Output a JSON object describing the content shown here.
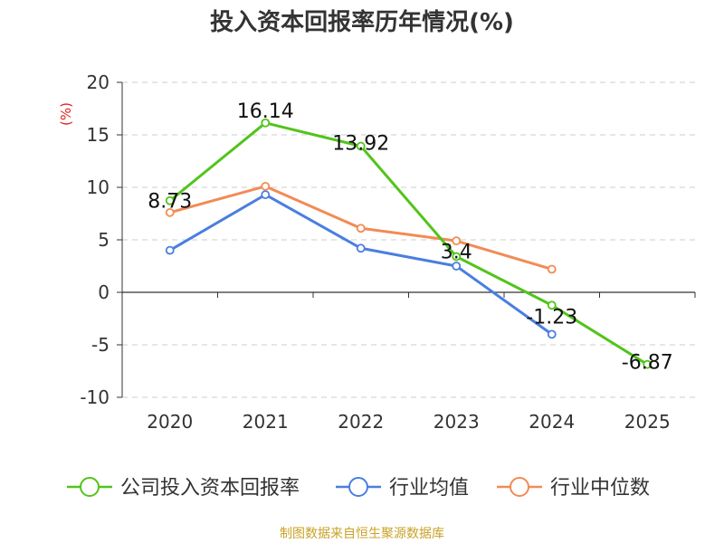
{
  "chart_data": {
    "type": "line",
    "title": "投入资本回报率历年情况(%)",
    "ylabel": "(%)",
    "xlabel": "",
    "categories": [
      "2020",
      "2021",
      "2022",
      "2023",
      "2024",
      "2025"
    ],
    "ylim": [
      -10,
      20
    ],
    "yticks": [
      20,
      15,
      10,
      5,
      0,
      -5,
      -10
    ],
    "grid": true,
    "legend_position": "bottom",
    "series": [
      {
        "name": "公司投入资本回报率",
        "color": "#52c41a",
        "values": [
          8.73,
          16.14,
          13.92,
          3.4,
          -1.23,
          -6.87
        ],
        "labels": [
          "8.73",
          "16.14",
          "13.92",
          "3.4",
          "-1.23",
          "-6.87"
        ]
      },
      {
        "name": "行业均值",
        "color": "#4a7ee0",
        "values": [
          4.0,
          9.3,
          4.2,
          2.5,
          -4.0,
          null
        ]
      },
      {
        "name": "行业中位数",
        "color": "#f28b54",
        "values": [
          7.6,
          10.1,
          6.1,
          4.9,
          2.2,
          null
        ]
      }
    ],
    "source": "制图数据来自恒生聚源数据库"
  }
}
